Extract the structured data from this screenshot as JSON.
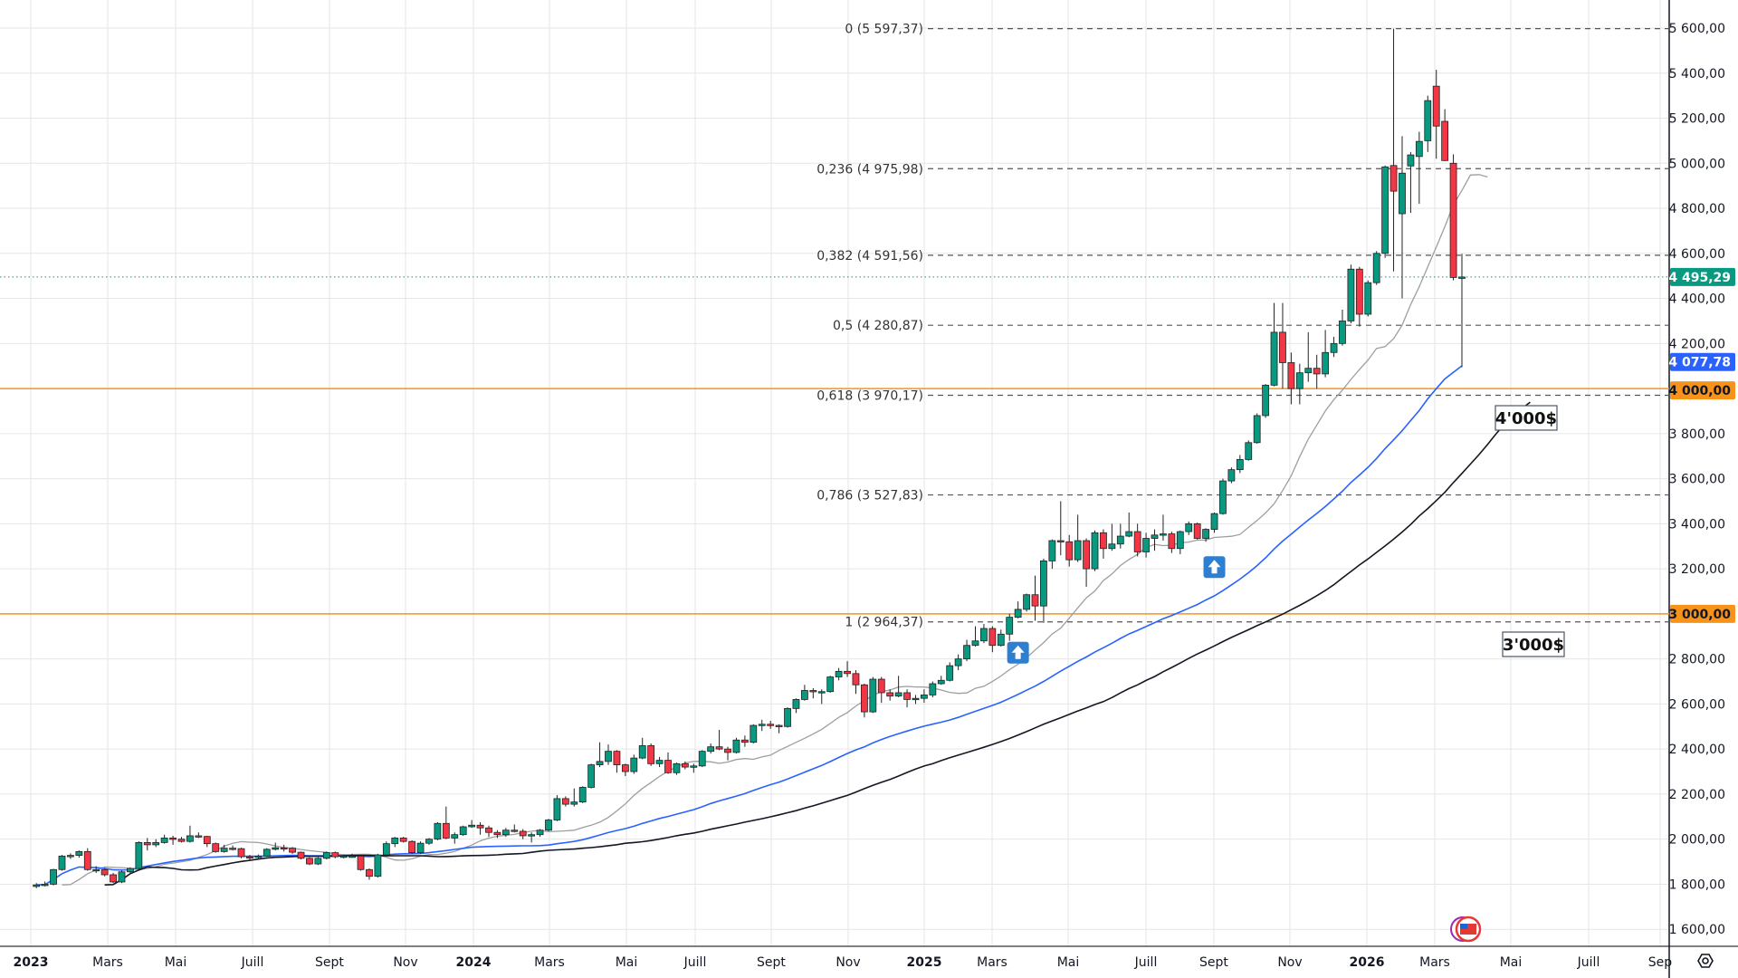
{
  "chart_data": {
    "type": "candlestick",
    "interval": "weekly",
    "price_axis": {
      "min": 1600,
      "max": 5600,
      "step": 200,
      "ticks": [
        "1 600,00",
        "1 800,00",
        "2 000,00",
        "2 200,00",
        "2 400,00",
        "2 600,00",
        "2 800,00",
        "3 000,00",
        "3 200,00",
        "3 400,00",
        "3 600,00",
        "3 800,00",
        "4 000,00",
        "4 200,00",
        "4 400,00",
        "4 600,00",
        "4 800,00",
        "5 000,00",
        "5 200,00",
        "5 400,00",
        "5 600,00"
      ]
    },
    "time_axis": {
      "ticks": [
        {
          "label": "2023",
          "bold": true
        },
        {
          "label": "Mars"
        },
        {
          "label": "Mai"
        },
        {
          "label": "Juill"
        },
        {
          "label": "Sept"
        },
        {
          "label": "Nov"
        },
        {
          "label": "2024",
          "bold": true
        },
        {
          "label": "Mars"
        },
        {
          "label": "Mai"
        },
        {
          "label": "Juill"
        },
        {
          "label": "Sept"
        },
        {
          "label": "Nov"
        },
        {
          "label": "2025",
          "bold": true
        },
        {
          "label": "Mars"
        },
        {
          "label": "Mai"
        },
        {
          "label": "Juill"
        },
        {
          "label": "Sept"
        },
        {
          "label": "Nov"
        },
        {
          "label": "2026",
          "bold": true
        },
        {
          "label": "Mars"
        },
        {
          "label": "Mai"
        },
        {
          "label": "Juill"
        },
        {
          "label": "Sep"
        }
      ]
    },
    "candles": [
      [
        1790,
        1805,
        1782,
        1797
      ],
      [
        1797,
        1812,
        1790,
        1800
      ],
      [
        1800,
        1868,
        1795,
        1865
      ],
      [
        1865,
        1930,
        1860,
        1925
      ],
      [
        1925,
        1937,
        1912,
        1928
      ],
      [
        1928,
        1950,
        1918,
        1945
      ],
      [
        1945,
        1960,
        1860,
        1865
      ],
      [
        1865,
        1880,
        1850,
        1865
      ],
      [
        1865,
        1870,
        1835,
        1842
      ],
      [
        1842,
        1850,
        1805,
        1810
      ],
      [
        1810,
        1860,
        1805,
        1855
      ],
      [
        1855,
        1875,
        1845,
        1870
      ],
      [
        1870,
        1990,
        1865,
        1985
      ],
      [
        1985,
        2005,
        1950,
        1975
      ],
      [
        1975,
        2000,
        1965,
        1985
      ],
      [
        1985,
        2020,
        1980,
        2005
      ],
      [
        2005,
        2015,
        1975,
        2000
      ],
      [
        2000,
        2010,
        1985,
        1990
      ],
      [
        1990,
        2060,
        1985,
        2015
      ],
      [
        2015,
        2030,
        2005,
        2012
      ],
      [
        2012,
        2015,
        1965,
        1980
      ],
      [
        1980,
        1985,
        1940,
        1945
      ],
      [
        1945,
        1975,
        1940,
        1960
      ],
      [
        1960,
        1972,
        1950,
        1958
      ],
      [
        1958,
        1962,
        1915,
        1922
      ],
      [
        1922,
        1930,
        1905,
        1920
      ],
      [
        1920,
        1932,
        1912,
        1925
      ],
      [
        1925,
        1960,
        1922,
        1955
      ],
      [
        1955,
        1985,
        1950,
        1962
      ],
      [
        1962,
        1975,
        1945,
        1960
      ],
      [
        1960,
        1965,
        1935,
        1942
      ],
      [
        1942,
        1945,
        1910,
        1915
      ],
      [
        1915,
        1920,
        1885,
        1890
      ],
      [
        1890,
        1920,
        1885,
        1915
      ],
      [
        1915,
        1945,
        1910,
        1940
      ],
      [
        1940,
        1945,
        1915,
        1922
      ],
      [
        1922,
        1932,
        1915,
        1925
      ],
      [
        1925,
        1935,
        1918,
        1925
      ],
      [
        1925,
        1928,
        1860,
        1865
      ],
      [
        1865,
        1870,
        1820,
        1835
      ],
      [
        1835,
        1935,
        1830,
        1930
      ],
      [
        1930,
        1990,
        1925,
        1980
      ],
      [
        1980,
        2010,
        1965,
        2005
      ],
      [
        2005,
        2010,
        1985,
        1990
      ],
      [
        1990,
        1995,
        1935,
        1940
      ],
      [
        1940,
        1990,
        1935,
        1982
      ],
      [
        1982,
        2005,
        1975,
        2000
      ],
      [
        2000,
        2075,
        1995,
        2070
      ],
      [
        2070,
        2145,
        2000,
        2005
      ],
      [
        2005,
        2030,
        1980,
        2020
      ],
      [
        2020,
        2060,
        2015,
        2055
      ],
      [
        2055,
        2085,
        2050,
        2062
      ],
      [
        2062,
        2075,
        2020,
        2050
      ],
      [
        2050,
        2060,
        2010,
        2030
      ],
      [
        2030,
        2040,
        2005,
        2020
      ],
      [
        2020,
        2050,
        2010,
        2040
      ],
      [
        2040,
        2065,
        2030,
        2035
      ],
      [
        2035,
        2045,
        2000,
        2015
      ],
      [
        2015,
        2030,
        1985,
        2020
      ],
      [
        2020,
        2045,
        2010,
        2040
      ],
      [
        2040,
        2090,
        2035,
        2085
      ],
      [
        2085,
        2195,
        2080,
        2180
      ],
      [
        2180,
        2190,
        2145,
        2155
      ],
      [
        2155,
        2225,
        2145,
        2165
      ],
      [
        2165,
        2235,
        2160,
        2230
      ],
      [
        2230,
        2335,
        2225,
        2330
      ],
      [
        2330,
        2430,
        2320,
        2345
      ],
      [
        2345,
        2420,
        2330,
        2390
      ],
      [
        2390,
        2395,
        2295,
        2330
      ],
      [
        2330,
        2335,
        2280,
        2300
      ],
      [
        2300,
        2375,
        2290,
        2360
      ],
      [
        2360,
        2450,
        2355,
        2415
      ],
      [
        2415,
        2425,
        2325,
        2335
      ],
      [
        2335,
        2365,
        2320,
        2350
      ],
      [
        2350,
        2385,
        2290,
        2295
      ],
      [
        2295,
        2340,
        2285,
        2335
      ],
      [
        2335,
        2345,
        2310,
        2320
      ],
      [
        2320,
        2335,
        2295,
        2325
      ],
      [
        2325,
        2395,
        2320,
        2390
      ],
      [
        2390,
        2425,
        2380,
        2410
      ],
      [
        2410,
        2485,
        2395,
        2400
      ],
      [
        2400,
        2410,
        2350,
        2385
      ],
      [
        2385,
        2450,
        2380,
        2440
      ],
      [
        2440,
        2460,
        2410,
        2430
      ],
      [
        2430,
        2510,
        2425,
        2505
      ],
      [
        2505,
        2530,
        2480,
        2510
      ],
      [
        2510,
        2525,
        2490,
        2505
      ],
      [
        2505,
        2510,
        2470,
        2500
      ],
      [
        2500,
        2585,
        2495,
        2580
      ],
      [
        2580,
        2625,
        2560,
        2620
      ],
      [
        2620,
        2685,
        2615,
        2660
      ],
      [
        2660,
        2670,
        2625,
        2655
      ],
      [
        2655,
        2665,
        2600,
        2655
      ],
      [
        2655,
        2725,
        2650,
        2720
      ],
      [
        2720,
        2760,
        2705,
        2745
      ],
      [
        2745,
        2790,
        2720,
        2735
      ],
      [
        2735,
        2750,
        2645,
        2685
      ],
      [
        2685,
        2690,
        2540,
        2565
      ],
      [
        2565,
        2720,
        2560,
        2710
      ],
      [
        2710,
        2720,
        2605,
        2650
      ],
      [
        2650,
        2665,
        2615,
        2635
      ],
      [
        2635,
        2725,
        2630,
        2650
      ],
      [
        2650,
        2665,
        2585,
        2620
      ],
      [
        2620,
        2640,
        2600,
        2625
      ],
      [
        2625,
        2665,
        2605,
        2640
      ],
      [
        2640,
        2700,
        2630,
        2690
      ],
      [
        2690,
        2725,
        2685,
        2705
      ],
      [
        2705,
        2785,
        2700,
        2770
      ],
      [
        2770,
        2820,
        2750,
        2800
      ],
      [
        2800,
        2885,
        2790,
        2860
      ],
      [
        2860,
        2945,
        2855,
        2880
      ],
      [
        2880,
        2955,
        2870,
        2935
      ],
      [
        2935,
        2945,
        2830,
        2860
      ],
      [
        2860,
        2930,
        2855,
        2910
      ],
      [
        2910,
        3000,
        2880,
        2985
      ],
      [
        2985,
        3055,
        2980,
        3020
      ],
      [
        3020,
        3090,
        3010,
        3085
      ],
      [
        3085,
        3170,
        2970,
        3035
      ],
      [
        3035,
        3245,
        2960,
        3235
      ],
      [
        3235,
        3330,
        3200,
        3325
      ],
      [
        3325,
        3500,
        3260,
        3320
      ],
      [
        3320,
        3350,
        3210,
        3240
      ],
      [
        3240,
        3440,
        3230,
        3325
      ],
      [
        3325,
        3335,
        3120,
        3200
      ],
      [
        3200,
        3370,
        3190,
        3360
      ],
      [
        3360,
        3375,
        3245,
        3290
      ],
      [
        3290,
        3400,
        3280,
        3310
      ],
      [
        3310,
        3400,
        3290,
        3345
      ],
      [
        3345,
        3450,
        3340,
        3365
      ],
      [
        3365,
        3400,
        3255,
        3275
      ],
      [
        3275,
        3360,
        3250,
        3335
      ],
      [
        3335,
        3375,
        3280,
        3350
      ],
      [
        3350,
        3440,
        3325,
        3355
      ],
      [
        3355,
        3365,
        3270,
        3290
      ],
      [
        3290,
        3370,
        3265,
        3365
      ],
      [
        3365,
        3410,
        3350,
        3400
      ],
      [
        3400,
        3405,
        3330,
        3335
      ],
      [
        3335,
        3380,
        3320,
        3375
      ],
      [
        3375,
        3450,
        3360,
        3445
      ],
      [
        3445,
        3600,
        3440,
        3590
      ],
      [
        3590,
        3650,
        3580,
        3640
      ],
      [
        3640,
        3705,
        3625,
        3685
      ],
      [
        3685,
        3770,
        3680,
        3760
      ],
      [
        3760,
        3890,
        3755,
        3880
      ],
      [
        3880,
        4020,
        3870,
        4015
      ],
      [
        4015,
        4380,
        4010,
        4250
      ],
      [
        4250,
        4380,
        4000,
        4115
      ],
      [
        4115,
        4160,
        3930,
        4000
      ],
      [
        4000,
        4110,
        3930,
        4070
      ],
      [
        4070,
        4250,
        4030,
        4090
      ],
      [
        4090,
        4150,
        4000,
        4065
      ],
      [
        4065,
        4260,
        4050,
        4160
      ],
      [
        4160,
        4230,
        4140,
        4200
      ],
      [
        4200,
        4350,
        4190,
        4300
      ],
      [
        4300,
        4550,
        4290,
        4530
      ],
      [
        4530,
        4540,
        4275,
        4330
      ],
      [
        4330,
        4480,
        4320,
        4470
      ],
      [
        4470,
        4610,
        4460,
        4600
      ],
      [
        4600,
        4990,
        4580,
        4984
      ],
      [
        4990,
        5597,
        4520,
        4876
      ],
      [
        4776,
        5120,
        4400,
        4956
      ],
      [
        4988,
        5050,
        4780,
        5037
      ],
      [
        5030,
        5140,
        4820,
        5097
      ],
      [
        5100,
        5300,
        5050,
        5278
      ],
      [
        5342,
        5415,
        5020,
        5165
      ],
      [
        5186,
        5240,
        5010,
        5012
      ],
      [
        5000,
        5040,
        4480,
        4493
      ],
      [
        4495,
        4598,
        4095,
        4495
      ]
    ],
    "moving_averages": [
      {
        "name": "fast",
        "period": 10,
        "offset": 3,
        "color": "#9e9e9e"
      },
      {
        "name": "mid",
        "period": 40,
        "offset": 0,
        "color": "#2962ff"
      },
      {
        "name": "slow",
        "period": 50,
        "offset": 8,
        "color": "#131722"
      }
    ],
    "fibonacci": [
      {
        "label": "0 (5 597,37)",
        "price": 5597.37
      },
      {
        "label": "0,236 (4 975,98)",
        "price": 4975.98
      },
      {
        "label": "0,382 (4 591,56)",
        "price": 4591.56
      },
      {
        "label": "0,5 (4 280,87)",
        "price": 4280.87
      },
      {
        "label": "0,618 (3 970,17)",
        "price": 3970.17
      },
      {
        "label": "0,786 (3 527,83)",
        "price": 3527.83
      },
      {
        "label": "1 (2 964,37)",
        "price": 2964.37
      }
    ],
    "horizontal_lines": [
      {
        "price": 4000,
        "label": "4 000,00",
        "color": "#f7931a",
        "note": "4'000$"
      },
      {
        "price": 3000,
        "label": "3 000,00",
        "color": "#f7931a",
        "note": "3'000$"
      }
    ],
    "price_labels": [
      {
        "price": 4495.29,
        "label": "4 495,29",
        "color": "#089981"
      },
      {
        "price": 4077.78,
        "label": "4 077,78",
        "color": "#2962ff"
      }
    ],
    "markers": [
      {
        "type": "arrow-up",
        "candle_index": 115,
        "price": 2900
      },
      {
        "type": "arrow-up",
        "candle_index": 138,
        "price": 3280
      }
    ],
    "colors": {
      "up": "#089981",
      "down": "#f23645",
      "grid": "#e6e6e6"
    }
  }
}
